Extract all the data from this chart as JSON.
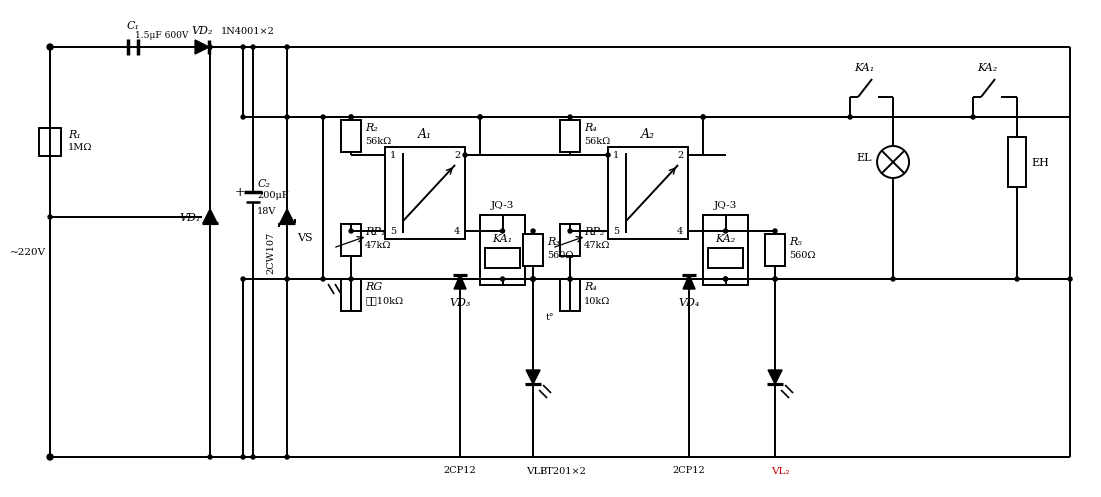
{
  "bg": "#ffffff",
  "lc": "#000000",
  "red": "#cc0000",
  "labels": {
    "C1": "C₁",
    "C1_val": "1.5μF 600V",
    "VD2": "VD₂",
    "VD2_val": "1N4001×2",
    "R1": "R₁",
    "R1_val": "1MΩ",
    "VD1": "VD₁",
    "C2": "C₂",
    "C2_val1": "200μF",
    "C2_val2": "18V",
    "VS": "VS",
    "VS_label": "2CW107",
    "A1": "A₁",
    "A2": "A₂",
    "R2": "R₂",
    "R2_val": "56kΩ",
    "RP1": "RP₁",
    "RP1_val": "47kΩ",
    "RG": "RG",
    "RG_val": "光≦10kΩ",
    "R4": "R₄",
    "R4_val": "56kΩ",
    "RP2": "RP₂",
    "RP2_val": "47kΩ",
    "Rt": "R₄",
    "Rt_val": "10kΩ",
    "R3": "R₃",
    "R3_val": "560Ω",
    "R5": "R₅",
    "R5_val": "560Ω",
    "JQ": "JQ-3",
    "KA1_coil": "KA₁",
    "KA2_coil": "KA₂",
    "KA1_sw": "KA₁",
    "KA2_sw": "KA₂",
    "VD3": "VD₃",
    "VD4": "VD₄",
    "VL1": "VL₁",
    "VL2": "VL₂",
    "EL": "EL",
    "EH": "EH",
    "AC": "~220V",
    "TRIAC12": "2CP12",
    "TRIAC_BT": "BT201×2",
    "TRIAC34": "2CP12",
    "p1": "1",
    "p2": "2",
    "p4": "4",
    "p5": "5",
    "t_label": "t°"
  }
}
